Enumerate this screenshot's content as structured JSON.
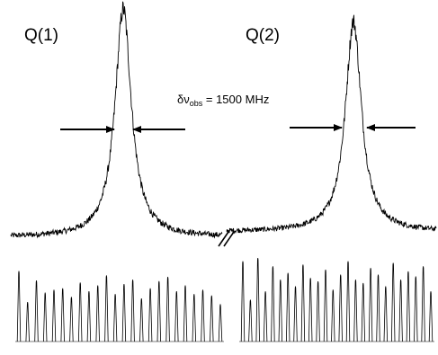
{
  "chart_data": {
    "type": "line",
    "title": "",
    "xlabel": "",
    "ylabel": "",
    "grid": false,
    "legend": "none",
    "line_color": "#000000",
    "panels": [
      {
        "label": "Q(1)",
        "lineshape": {
          "center": 0.0,
          "fwhm_mhz": 1500,
          "x_range_mhz": [
            -8000,
            8000
          ],
          "baseline": 0.0,
          "peak": 1.0
        },
        "comb": {
          "line_count": 24,
          "relative_heights": [
            0.98,
            0.55,
            0.85,
            0.68,
            0.72,
            0.74,
            0.62,
            0.82,
            0.7,
            0.78,
            0.92,
            0.66,
            0.8,
            0.86,
            0.6,
            0.74,
            0.84,
            0.9,
            0.7,
            0.78,
            0.66,
            0.72,
            0.64,
            0.52
          ]
        }
      },
      {
        "label": "Q(2)",
        "lineshape": {
          "center": 0.0,
          "fwhm_mhz": 1500,
          "x_range_mhz": [
            -8000,
            8000
          ],
          "baseline": 0.0,
          "peak": 1.0
        },
        "comb": {
          "line_count": 26,
          "relative_heights": [
            0.96,
            0.5,
            1.0,
            0.6,
            0.9,
            0.74,
            0.82,
            0.66,
            0.92,
            0.76,
            0.72,
            0.86,
            0.62,
            0.8,
            0.96,
            0.74,
            0.7,
            0.88,
            0.8,
            0.66,
            0.94,
            0.74,
            0.84,
            0.78,
            0.9,
            0.6
          ]
        }
      }
    ],
    "annotation": {
      "symbol": "δν",
      "subscript": "obs",
      "text": " = 1500 MHz"
    },
    "axis_break": "//"
  }
}
